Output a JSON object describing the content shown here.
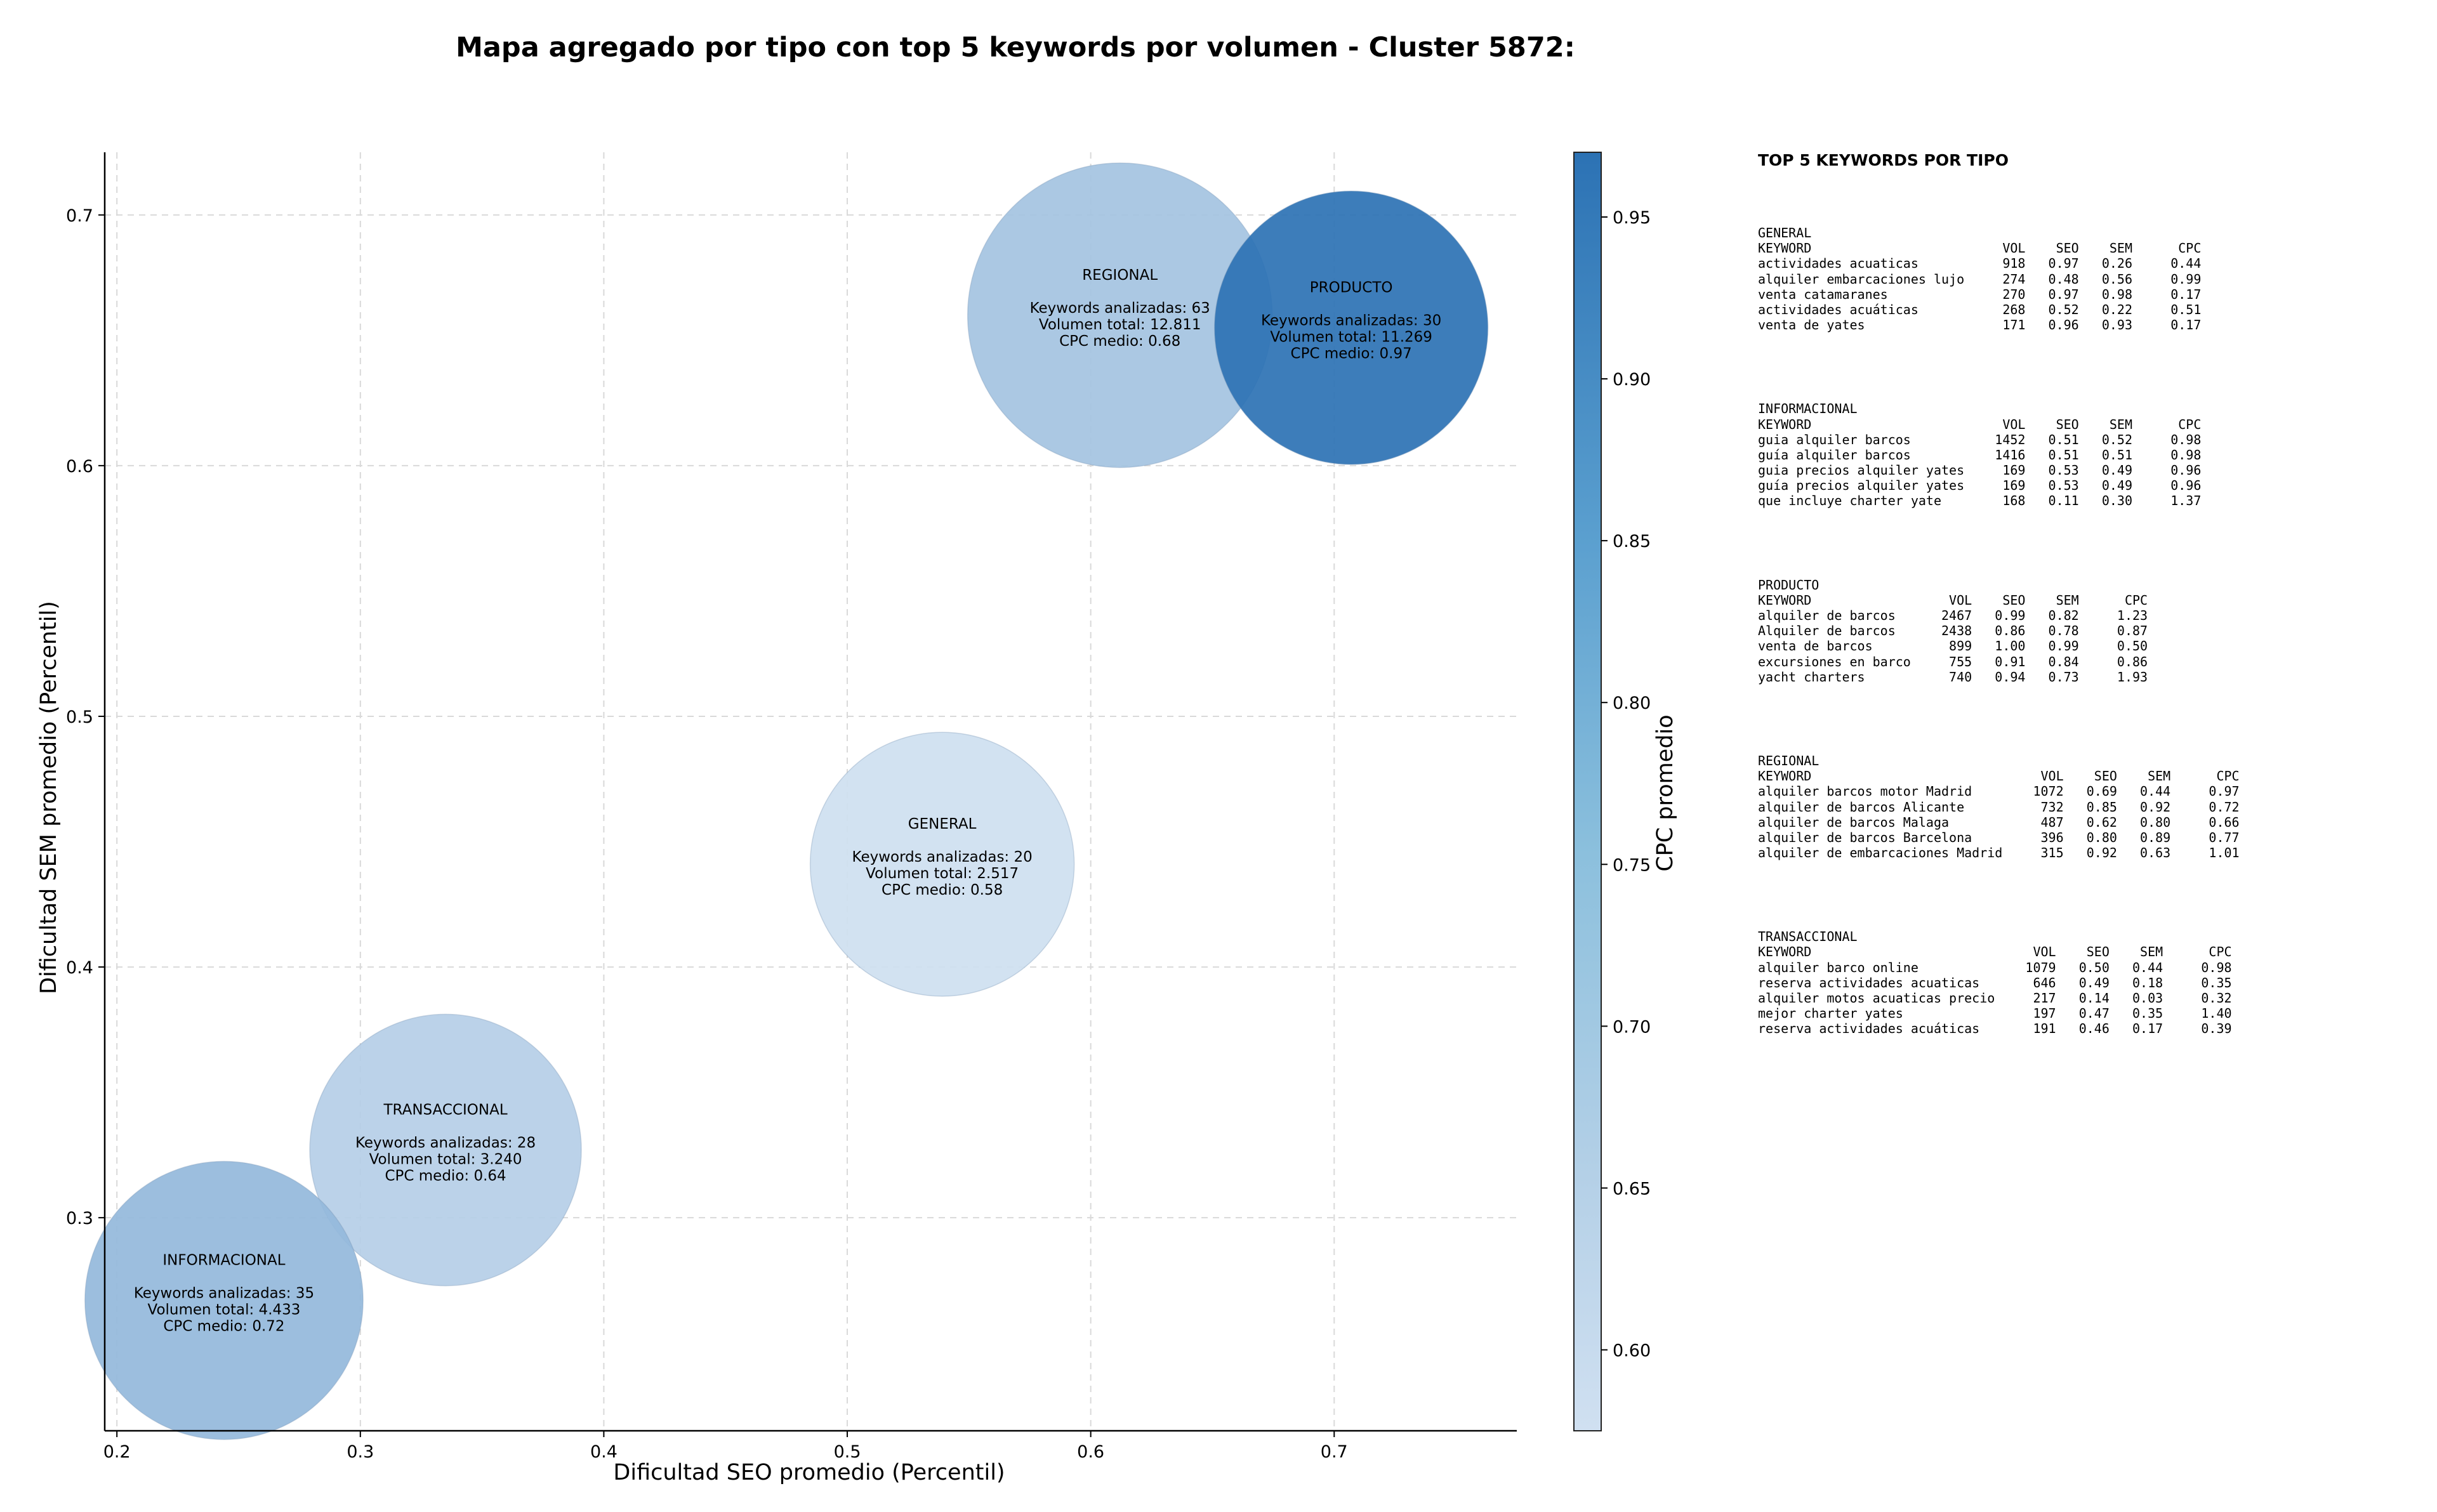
{
  "title": "Mapa agregado por tipo con top 5 keywords por volumen - Cluster 5872:",
  "chart_data": {
    "type": "scatter",
    "title": "Mapa agregado por tipo con top 5 keywords por volumen - Cluster 5872:",
    "xlabel": "Dificultad SEO promedio (Percentil)",
    "ylabel": "Dificultad SEM promedio (Percentil)",
    "xlim": [
      0.195,
      0.775
    ],
    "ylim": [
      0.215,
      0.725
    ],
    "xticks": [
      "0.2",
      "0.3",
      "0.4",
      "0.5",
      "0.6",
      "0.7"
    ],
    "yticks": [
      "0.3",
      "0.4",
      "0.5",
      "0.6",
      "0.7"
    ],
    "grid": true,
    "colorbar": {
      "label": "CPC promedio",
      "range": [
        0.575,
        0.97
      ],
      "ticks": [
        "0.60",
        "0.65",
        "0.70",
        "0.75",
        "0.80",
        "0.85",
        "0.90",
        "0.95"
      ],
      "colors": [
        "#d0e0f1",
        "#2c72b4"
      ]
    },
    "points": [
      {
        "name": "REGIONAL",
        "x": 0.612,
        "y": 0.66,
        "cpc": 0.68,
        "keywords": 63,
        "lines": [
          "REGIONAL",
          "",
          "Keywords analizadas: 63",
          "Volumen total: 12.811",
          "CPC medio: 0.68"
        ]
      },
      {
        "name": "PRODUCTO",
        "x": 0.707,
        "y": 0.655,
        "cpc": 0.97,
        "keywords": 30,
        "lines": [
          "PRODUCTO",
          "",
          "Keywords analizadas: 30",
          "Volumen total: 11.269",
          "CPC medio: 0.97"
        ]
      },
      {
        "name": "GENERAL",
        "x": 0.539,
        "y": 0.441,
        "cpc": 0.58,
        "keywords": 20,
        "lines": [
          "GENERAL",
          "",
          "Keywords analizadas: 20",
          "Volumen total: 2.517",
          "CPC medio: 0.58"
        ]
      },
      {
        "name": "TRANSACCIONAL",
        "x": 0.335,
        "y": 0.327,
        "cpc": 0.64,
        "keywords": 28,
        "lines": [
          "TRANSACCIONAL",
          "",
          "Keywords analizadas: 28",
          "Volumen total: 3.240",
          "CPC medio: 0.64"
        ]
      },
      {
        "name": "INFORMACIONAL",
        "x": 0.244,
        "y": 0.267,
        "cpc": 0.72,
        "keywords": 35,
        "lines": [
          "INFORMACIONAL",
          "",
          "Keywords analizadas: 35",
          "Volumen total: 4.433",
          "CPC medio: 0.72"
        ]
      }
    ]
  },
  "top5": {
    "heading": "TOP 5 KEYWORDS POR TIPO",
    "blocks": [
      {
        "lines": [
          "GENERAL",
          "KEYWORD                         VOL    SEO    SEM      CPC",
          "actividades acuaticas           918   0.97   0.26     0.44",
          "alquiler embarcaciones lujo     274   0.48   0.56     0.99",
          "venta catamaranes               270   0.97   0.98     0.17",
          "actividades acuáticas           268   0.52   0.22     0.51",
          "venta de yates                  171   0.96   0.93     0.17"
        ]
      },
      {
        "lines": [
          "INFORMACIONAL",
          "KEYWORD                         VOL    SEO    SEM      CPC",
          "guia alquiler barcos           1452   0.51   0.52     0.98",
          "guía alquiler barcos           1416   0.51   0.51     0.98",
          "guia precios alquiler yates     169   0.53   0.49     0.96",
          "guía precios alquiler yates     169   0.53   0.49     0.96",
          "que incluye charter yate        168   0.11   0.30     1.37"
        ]
      },
      {
        "lines": [
          "PRODUCTO",
          "KEYWORD                  VOL    SEO    SEM      CPC",
          "alquiler de barcos      2467   0.99   0.82     1.23",
          "Alquiler de barcos      2438   0.86   0.78     0.87",
          "venta de barcos          899   1.00   0.99     0.50",
          "excursiones en barco     755   0.91   0.84     0.86",
          "yacht charters           740   0.94   0.73     1.93"
        ]
      },
      {
        "lines": [
          "REGIONAL",
          "KEYWORD                              VOL    SEO    SEM      CPC",
          "alquiler barcos motor Madrid        1072   0.69   0.44     0.97",
          "alquiler de barcos Alicante          732   0.85   0.92     0.72",
          "alquiler de barcos Malaga            487   0.62   0.80     0.66",
          "alquiler de barcos Barcelona         396   0.80   0.89     0.77",
          "alquiler de embarcaciones Madrid     315   0.92   0.63     1.01"
        ]
      },
      {
        "lines": [
          "TRANSACCIONAL",
          "KEYWORD                             VOL    SEO    SEM      CPC",
          "alquiler barco online              1079   0.50   0.44     0.98",
          "reserva actividades acuaticas       646   0.49   0.18     0.35",
          "alquiler motos acuaticas precio     217   0.14   0.03     0.32",
          "mejor charter yates                 197   0.47   0.35     1.40",
          "reserva actividades acuáticas       191   0.46   0.17     0.39"
        ]
      }
    ]
  }
}
